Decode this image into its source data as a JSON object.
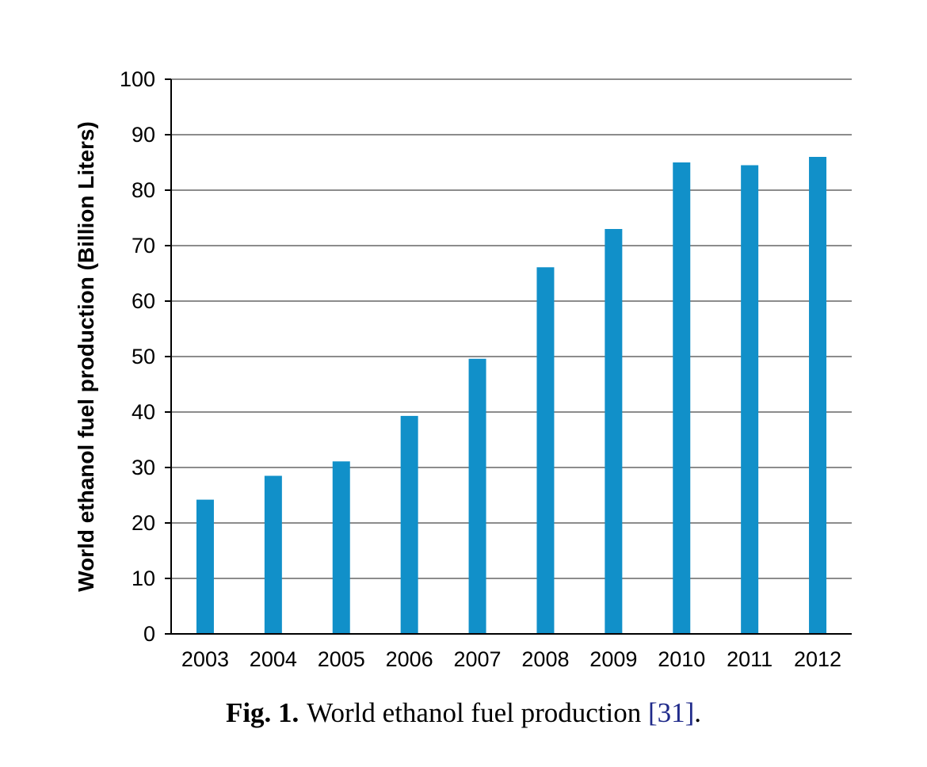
{
  "chart_data": {
    "type": "bar",
    "categories": [
      "2003",
      "2004",
      "2005",
      "2006",
      "2007",
      "2008",
      "2009",
      "2010",
      "2011",
      "2012"
    ],
    "values": [
      24.2,
      28.5,
      31.1,
      39.3,
      49.6,
      66.1,
      73.0,
      85.0,
      84.5,
      86.0
    ],
    "title": "",
    "xlabel": "",
    "ylabel": "World ethanol fuel production (Billion Liters)",
    "ylim": [
      0,
      100
    ],
    "yticks": [
      "0",
      "10",
      "20",
      "30",
      "40",
      "50",
      "60",
      "70",
      "80",
      "90",
      "100"
    ],
    "grid": true,
    "bar_color": "#1190c9",
    "grid_color": "#8c8c8c",
    "axis_color": "#000000"
  },
  "caption": {
    "label": "Fig. 1.",
    "text": "World ethanol fuel production ",
    "ref": "[31]",
    "end": "."
  }
}
